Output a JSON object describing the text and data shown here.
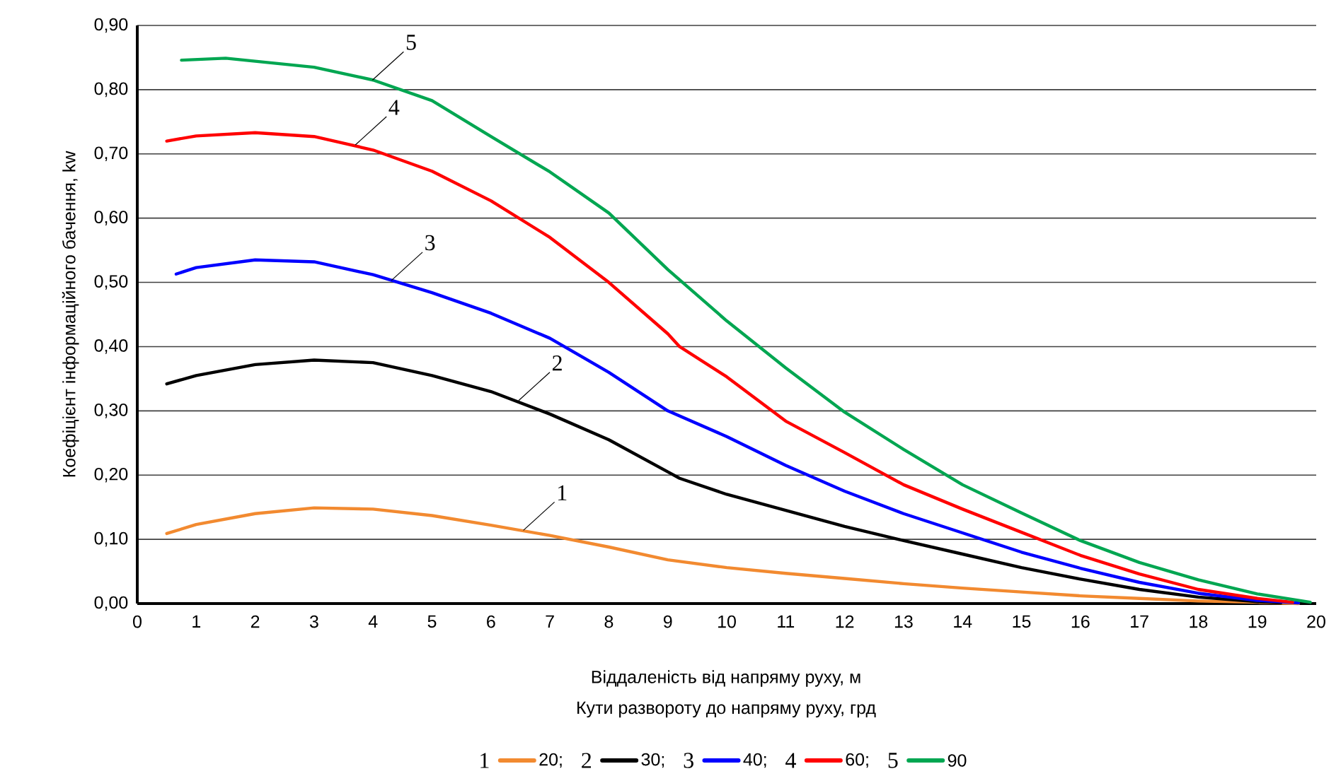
{
  "chart_data": {
    "type": "line",
    "xlabel": "Віддаленість від напряму руху, м",
    "ylabel": "Коефіцієнт інформаційного бачення, kw",
    "legend_title": "Кути развороту до напряму руху, грд",
    "legend": "bottom",
    "grid": "y",
    "xlim": [
      0,
      20
    ],
    "xticks": [
      0,
      1,
      2,
      3,
      4,
      5,
      6,
      7,
      8,
      9,
      10,
      11,
      12,
      13,
      14,
      15,
      16,
      17,
      18,
      19,
      20
    ],
    "ylim": [
      0,
      0.9
    ],
    "yticks": [
      {
        "value": 0,
        "label": "0,00"
      },
      {
        "value": 0.1,
        "label": "0,10"
      },
      {
        "value": 0.2,
        "label": "0,20"
      },
      {
        "value": 0.3,
        "label": "0,30"
      },
      {
        "value": 0.4,
        "label": "0,40"
      },
      {
        "value": 0.5,
        "label": "0,50"
      },
      {
        "value": 0.6,
        "label": "0,60"
      },
      {
        "value": 0.7,
        "label": "0,70"
      },
      {
        "value": 0.8,
        "label": "0,80"
      },
      {
        "value": 0.9,
        "label": "0,90"
      }
    ],
    "series": [
      {
        "name": "20;",
        "color": "#f28a30",
        "x": [
          0.5,
          1,
          2,
          3,
          4,
          5,
          6,
          7,
          8,
          9,
          10,
          11,
          12,
          13,
          14,
          15,
          16,
          17,
          18,
          19,
          19.7
        ],
        "values": [
          0.109,
          0.123,
          0.14,
          0.149,
          0.147,
          0.137,
          0.122,
          0.106,
          0.088,
          0.068,
          0.056,
          0.047,
          0.039,
          0.031,
          0.024,
          0.018,
          0.012,
          0.008,
          0.004,
          0.002,
          0
        ]
      },
      {
        "name": "30;",
        "color": "#000000",
        "x": [
          0.5,
          1,
          2,
          3,
          4,
          5,
          6,
          7,
          8,
          9,
          9.2,
          10,
          11,
          12,
          13,
          14,
          15,
          16,
          17,
          18,
          19,
          19.4
        ],
        "values": [
          0.342,
          0.355,
          0.372,
          0.379,
          0.375,
          0.355,
          0.33,
          0.295,
          0.255,
          0.205,
          0.195,
          0.17,
          0.145,
          0.12,
          0.098,
          0.077,
          0.056,
          0.038,
          0.022,
          0.01,
          0.003,
          0.001
        ]
      },
      {
        "name": "40;",
        "color": "#0000ff",
        "x": [
          0.66,
          1,
          2,
          3,
          4,
          5,
          6,
          7,
          8,
          9,
          10,
          11,
          12,
          13,
          14,
          15,
          16,
          17,
          18,
          19,
          19.7
        ],
        "values": [
          0.513,
          0.523,
          0.535,
          0.532,
          0.512,
          0.484,
          0.452,
          0.413,
          0.36,
          0.3,
          0.26,
          0.215,
          0.175,
          0.14,
          0.11,
          0.08,
          0.055,
          0.033,
          0.016,
          0.005,
          0.001
        ]
      },
      {
        "name": "60;",
        "color": "#ff0000",
        "x": [
          0.5,
          1,
          2,
          3,
          4,
          5,
          6,
          7,
          8,
          9,
          9.2,
          10,
          11,
          12,
          13,
          14,
          15,
          16,
          17,
          18,
          19,
          19.6
        ],
        "values": [
          0.72,
          0.728,
          0.733,
          0.727,
          0.706,
          0.673,
          0.627,
          0.57,
          0.5,
          0.42,
          0.4,
          0.353,
          0.284,
          0.235,
          0.185,
          0.147,
          0.111,
          0.075,
          0.046,
          0.022,
          0.008,
          0.002
        ]
      },
      {
        "name": "90",
        "color": "#00a651",
        "x": [
          0.75,
          1.5,
          3,
          4,
          5,
          6,
          7,
          8,
          9,
          10,
          11,
          12,
          13,
          14,
          15,
          16,
          17,
          18,
          19,
          19.9
        ],
        "values": [
          0.846,
          0.849,
          0.835,
          0.815,
          0.783,
          0.727,
          0.672,
          0.608,
          0.52,
          0.44,
          0.367,
          0.298,
          0.24,
          0.185,
          0.141,
          0.098,
          0.064,
          0.037,
          0.015,
          0.002
        ]
      }
    ],
    "annotations": [
      {
        "text": "1",
        "x": 6.55,
        "y": 0.114
      },
      {
        "text": "2",
        "x": 6.47,
        "y": 0.316
      },
      {
        "text": "3",
        "x": 4.31,
        "y": 0.503
      },
      {
        "text": "4",
        "x": 3.7,
        "y": 0.714
      },
      {
        "text": "5",
        "x": 3.99,
        "y": 0.815
      }
    ]
  }
}
